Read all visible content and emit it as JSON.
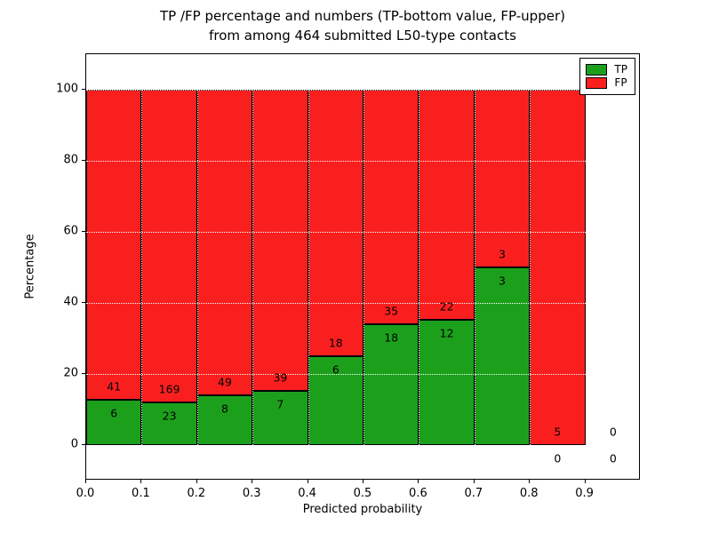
{
  "title_line1": "TP /FP percentage and numbers (TP-bottom value, FP-upper)",
  "title_line2": "from among 464 submitted L50-type contacts",
  "chart_data": {
    "type": "bar",
    "stacked": true,
    "title": "TP /FP percentage and numbers (TP-bottom value, FP-upper) from among 464 submitted L50-type contacts",
    "xlabel": "Predicted probability",
    "ylabel": "Percentage",
    "xlim": [
      0,
      1.0
    ],
    "ylim": [
      -10,
      110
    ],
    "x_ticks": [
      "0.0",
      "0.1",
      "0.2",
      "0.3",
      "0.4",
      "0.5",
      "0.6",
      "0.7",
      "0.8",
      "0.9"
    ],
    "y_ticks": [
      0,
      20,
      40,
      60,
      80,
      100
    ],
    "grid": true,
    "grid_style": "white-dotted",
    "total_contacts": 464,
    "colors": {
      "tp": "#1ca01c",
      "fp": "#fa1f1f"
    },
    "legend": {
      "position": "upper right",
      "entries": [
        {
          "label": "TP",
          "color": "#1ca01c"
        },
        {
          "label": "FP",
          "color": "#fa1f1f"
        }
      ]
    },
    "bins": [
      {
        "x0": 0.0,
        "x1": 0.1,
        "tp_count": 6,
        "fp_count": 41,
        "tp_pct": 12.8,
        "fp_pct": 87.2
      },
      {
        "x0": 0.1,
        "x1": 0.2,
        "tp_count": 23,
        "fp_count": 169,
        "tp_pct": 12.0,
        "fp_pct": 88.0
      },
      {
        "x0": 0.2,
        "x1": 0.3,
        "tp_count": 8,
        "fp_count": 49,
        "tp_pct": 14.0,
        "fp_pct": 86.0
      },
      {
        "x0": 0.3,
        "x1": 0.4,
        "tp_count": 7,
        "fp_count": 39,
        "tp_pct": 15.2,
        "fp_pct": 84.8
      },
      {
        "x0": 0.4,
        "x1": 0.5,
        "tp_count": 6,
        "fp_count": 18,
        "tp_pct": 25.0,
        "fp_pct": 75.0
      },
      {
        "x0": 0.5,
        "x1": 0.6,
        "tp_count": 18,
        "fp_count": 35,
        "tp_pct": 34.0,
        "fp_pct": 66.0
      },
      {
        "x0": 0.6,
        "x1": 0.7,
        "tp_count": 12,
        "fp_count": 22,
        "tp_pct": 35.3,
        "fp_pct": 64.7
      },
      {
        "x0": 0.7,
        "x1": 0.8,
        "tp_count": 3,
        "fp_count": 3,
        "tp_pct": 50.0,
        "fp_pct": 50.0
      },
      {
        "x0": 0.8,
        "x1": 0.9,
        "tp_count": 0,
        "fp_count": 5,
        "tp_pct": 0,
        "fp_pct": 100
      },
      {
        "x0": 0.9,
        "x1": 1.0,
        "tp_count": 0,
        "fp_count": 0,
        "tp_pct": 0,
        "fp_pct": 0
      }
    ]
  }
}
